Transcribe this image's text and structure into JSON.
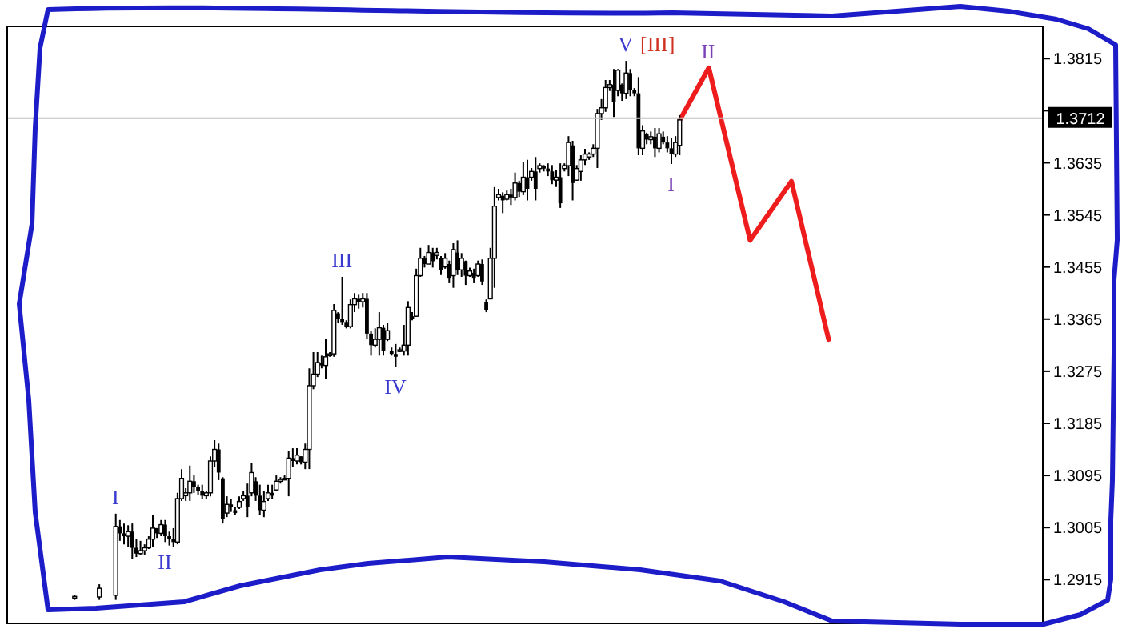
{
  "chart_data": {
    "type": "candlestick",
    "categories": [
      null,
      null,
      null,
      null,
      null,
      null,
      null,
      null,
      null,
      null,
      null,
      null,
      null,
      null,
      null,
      null,
      null,
      null,
      null,
      null,
      null,
      null,
      null,
      null,
      null,
      null,
      null,
      null,
      null,
      null,
      null,
      null,
      null,
      null,
      null,
      null,
      null,
      null,
      null,
      null,
      null,
      null,
      null,
      null,
      null,
      null,
      null,
      null,
      null,
      null,
      null,
      null,
      null,
      null,
      null,
      null,
      null,
      null,
      null,
      null,
      null,
      null,
      null,
      null,
      null,
      null,
      null,
      null,
      null,
      null,
      null,
      null,
      null,
      null,
      null,
      null,
      null,
      null,
      null,
      null,
      null,
      null,
      null,
      null,
      null,
      null,
      null,
      null,
      null,
      null,
      null,
      null,
      null,
      null,
      null,
      null,
      null,
      null,
      null,
      null,
      null,
      null,
      null,
      null,
      null,
      null,
      null,
      null,
      null,
      null,
      null,
      null,
      null,
      null,
      null,
      null,
      null,
      null,
      null,
      null,
      null,
      null,
      null,
      null,
      null,
      null,
      null,
      null,
      null,
      null,
      null,
      null,
      null,
      null,
      null,
      null,
      null,
      null,
      null,
      null,
      null,
      null,
      null,
      null,
      null,
      null,
      null,
      null,
      null,
      null,
      null,
      null,
      null,
      null,
      null,
      null,
      null,
      null,
      null,
      null,
      null,
      null,
      null,
      null,
      null,
      null,
      null,
      null,
      null,
      null,
      null,
      null,
      null,
      null,
      null,
      null,
      null,
      null,
      null,
      null,
      null,
      null,
      null,
      null,
      null,
      null,
      null,
      null,
      null,
      null,
      null,
      null,
      null,
      null,
      null,
      null,
      null,
      null,
      null,
      null,
      null,
      null,
      null,
      null,
      null,
      null,
      null,
      null,
      null,
      null,
      null,
      null,
      null,
      null,
      null,
      null,
      null,
      null,
      null,
      null,
      null,
      null,
      null,
      null,
      null,
      null,
      null,
      null,
      null,
      null,
      null,
      null,
      null,
      null,
      null,
      null,
      null,
      null,
      null,
      null,
      null,
      null,
      null,
      null,
      null,
      null,
      null,
      null,
      null,
      null,
      null,
      null
    ],
    "ohlc": [
      null,
      null,
      null,
      null,
      null,
      null,
      null,
      null,
      null,
      null,
      null,
      null,
      null,
      null,
      null,
      null,
      [
        1.2884,
        1.2888,
        1.288,
        1.2886
      ],
      null,
      null,
      null,
      null,
      null,
      [
        1.2885,
        1.2907,
        1.288,
        1.29
      ],
      null,
      null,
      null,
      [
        1.2888,
        1.3029,
        1.288,
        1.3007
      ],
      [
        1.3007,
        1.3018,
        1.2982,
        1.2995
      ],
      [
        1.2995,
        1.3012,
        1.2976,
        1.299
      ],
      [
        1.299,
        1.3009,
        1.2971,
        1.2998
      ],
      [
        1.2998,
        1.3012,
        1.2951,
        1.297
      ],
      [
        1.297,
        1.2985,
        1.2954,
        1.296
      ],
      [
        1.296,
        1.2982,
        1.2957,
        1.2965
      ],
      [
        1.2965,
        1.2976,
        1.2957,
        1.297
      ],
      [
        1.297,
        1.299,
        1.2968,
        1.2985
      ],
      [
        1.2985,
        1.3027,
        1.2971,
        1.3004
      ],
      [
        1.3004,
        1.3004,
        1.2987,
        1.2995
      ],
      [
        1.2995,
        1.3018,
        1.299,
        1.301
      ],
      [
        1.301,
        1.3018,
        1.298,
        1.299
      ],
      [
        1.299,
        1.2998,
        1.2974,
        1.2985
      ],
      [
        1.2985,
        1.3004,
        1.2971,
        1.298
      ],
      [
        1.298,
        1.3065,
        1.2976,
        1.3055
      ],
      [
        1.3055,
        1.3106,
        1.3051,
        1.309
      ],
      [
        1.306,
        1.3073,
        1.3051,
        1.3065
      ],
      [
        1.3065,
        1.3112,
        1.3051,
        1.3085
      ],
      [
        1.3085,
        1.3095,
        1.3065,
        1.3075
      ],
      [
        1.3075,
        1.3079,
        1.3062,
        1.3068
      ],
      [
        1.3068,
        1.3079,
        1.3054,
        1.306
      ],
      [
        1.306,
        1.3068,
        1.3054,
        1.3065
      ],
      [
        1.3065,
        1.3128,
        1.3059,
        1.312
      ],
      [
        1.312,
        1.3156,
        1.3109,
        1.314
      ],
      [
        1.314,
        1.315,
        1.3087,
        1.31
      ],
      [
        1.309,
        1.3092,
        1.3012,
        1.302
      ],
      [
        1.303,
        1.3059,
        1.3023,
        1.3045
      ],
      [
        1.3045,
        1.3054,
        1.3032,
        1.304
      ],
      [
        1.3035,
        1.304,
        1.3026,
        1.303
      ],
      [
        1.304,
        1.3059,
        1.3037,
        1.305
      ],
      [
        1.3055,
        1.3068,
        1.3051,
        1.306
      ],
      [
        1.306,
        1.3081,
        1.3023,
        1.304
      ],
      [
        1.3065,
        1.3117,
        1.3059,
        1.31
      ],
      [
        1.3085,
        1.3092,
        1.3051,
        1.306
      ],
      [
        1.306,
        1.3079,
        1.3026,
        1.3035
      ],
      [
        1.3035,
        1.3068,
        1.3023,
        1.305
      ],
      [
        1.3055,
        1.3079,
        1.3051,
        1.3065
      ],
      [
        1.3065,
        1.3079,
        1.3054,
        1.306
      ],
      [
        1.307,
        1.3095,
        1.3068,
        1.3085
      ],
      [
        1.3085,
        1.3092,
        1.3081,
        1.3088
      ],
      [
        1.3088,
        1.3095,
        1.3087,
        1.309
      ],
      [
        1.309,
        1.3137,
        1.3059,
        1.3125
      ],
      [
        1.3125,
        1.3142,
        1.3109,
        1.312
      ],
      [
        1.312,
        1.3142,
        1.3114,
        1.313
      ],
      [
        1.3128,
        1.3128,
        1.3114,
        1.3118
      ],
      [
        1.3118,
        1.315,
        1.3106,
        1.314
      ],
      [
        1.314,
        1.328,
        1.3106,
        1.325
      ],
      [
        1.325,
        1.3308,
        1.3244,
        1.327
      ],
      [
        1.327,
        1.3308,
        1.3265,
        1.329
      ],
      [
        1.329,
        1.3302,
        1.328,
        1.3285
      ],
      [
        1.3285,
        1.333,
        1.3261,
        1.33
      ],
      [
        1.3302,
        1.3308,
        1.33,
        1.3305
      ],
      [
        1.3305,
        1.3391,
        1.33,
        1.338
      ],
      [
        1.3375,
        1.3377,
        1.3358,
        1.3365
      ],
      [
        1.3365,
        1.3438,
        1.3355,
        1.336
      ],
      [
        1.336,
        1.3363,
        1.3349,
        1.3352
      ],
      [
        1.3352,
        1.3399,
        1.3349,
        1.339
      ],
      [
        1.339,
        1.341,
        1.3377,
        1.34
      ],
      [
        1.34,
        1.3407,
        1.3383,
        1.3395
      ],
      [
        1.3395,
        1.341,
        1.3385,
        1.34
      ],
      [
        1.34,
        1.341,
        1.333,
        1.334
      ],
      [
        1.334,
        1.3344,
        1.3302,
        1.332
      ],
      [
        1.332,
        1.3349,
        1.3316,
        1.333
      ],
      [
        1.333,
        1.3377,
        1.3302,
        1.335
      ],
      [
        1.335,
        1.3355,
        1.3302,
        1.331
      ],
      [
        1.333,
        1.3358,
        1.3327,
        1.3345
      ],
      [
        1.331,
        1.3316,
        1.3302,
        1.3305
      ],
      [
        1.3305,
        1.3322,
        1.3283,
        1.33
      ],
      [
        1.331,
        1.3316,
        1.3308,
        1.3312
      ],
      [
        1.331,
        1.3355,
        1.3302,
        1.332
      ],
      [
        1.332,
        1.3396,
        1.3302,
        1.3385
      ],
      [
        1.337,
        1.3377,
        1.3363,
        1.3366
      ],
      [
        1.337,
        1.3452,
        1.3369,
        1.344
      ],
      [
        1.344,
        1.3488,
        1.3438,
        1.347
      ],
      [
        1.347,
        1.3474,
        1.3454,
        1.346
      ],
      [
        1.346,
        1.3493,
        1.346,
        1.348
      ],
      [
        1.348,
        1.3488,
        1.3454,
        1.3465
      ],
      [
        1.3475,
        1.3488,
        1.3468,
        1.348
      ],
      [
        1.347,
        1.3474,
        1.3441,
        1.345
      ],
      [
        1.3455,
        1.3479,
        1.3452,
        1.347
      ],
      [
        1.346,
        1.3466,
        1.3427,
        1.3435
      ],
      [
        1.344,
        1.3496,
        1.3419,
        1.3485
      ],
      [
        1.348,
        1.3501,
        1.3441,
        1.345
      ],
      [
        1.345,
        1.3479,
        1.3438,
        1.347
      ],
      [
        1.3465,
        1.3466,
        1.3424,
        1.344
      ],
      [
        1.344,
        1.3454,
        1.3438,
        1.3448
      ],
      [
        1.3445,
        1.3452,
        1.3427,
        1.3435
      ],
      [
        1.344,
        1.3466,
        1.3438,
        1.346
      ],
      [
        1.346,
        1.3468,
        1.3424,
        1.343
      ],
      [
        1.3395,
        1.3399,
        1.3377,
        1.338
      ],
      [
        1.34,
        1.3488,
        1.3399,
        1.347
      ],
      [
        1.347,
        1.3593,
        1.3419,
        1.356
      ],
      [
        1.3575,
        1.359,
        1.357,
        1.358
      ],
      [
        1.3578,
        1.3584,
        1.3548,
        1.357
      ],
      [
        1.3572,
        1.3587,
        1.357,
        1.358
      ],
      [
        1.358,
        1.359,
        1.3562,
        1.3575
      ],
      [
        1.3575,
        1.3618,
        1.357,
        1.36
      ],
      [
        1.36,
        1.3604,
        1.3576,
        1.3585
      ],
      [
        1.3585,
        1.3637,
        1.3579,
        1.361
      ],
      [
        1.361,
        1.364,
        1.357,
        1.359
      ],
      [
        1.361,
        1.3626,
        1.3604,
        1.362
      ],
      [
        1.362,
        1.3645,
        1.357,
        1.359
      ],
      [
        1.3625,
        1.3634,
        1.3618,
        1.363
      ],
      [
        1.363,
        1.3631,
        1.362,
        1.3625
      ],
      [
        1.3625,
        1.3634,
        1.3612,
        1.362
      ],
      [
        1.362,
        1.3631,
        1.3598,
        1.3605
      ],
      [
        1.3605,
        1.3623,
        1.3593,
        1.361
      ],
      [
        1.361,
        1.3634,
        1.3557,
        1.3565
      ],
      [
        1.3625,
        1.3634,
        1.362,
        1.363
      ],
      [
        1.363,
        1.3681,
        1.3612,
        1.367
      ],
      [
        1.3665,
        1.3673,
        1.357,
        1.36
      ],
      [
        1.3605,
        1.3631,
        1.3604,
        1.3625
      ],
      [
        1.362,
        1.3648,
        1.3604,
        1.364
      ],
      [
        1.364,
        1.3659,
        1.3631,
        1.365
      ],
      [
        1.3645,
        1.3653,
        1.364,
        1.365
      ],
      [
        1.365,
        1.3667,
        1.3645,
        1.366
      ],
      [
        1.366,
        1.3728,
        1.3626,
        1.372
      ],
      [
        1.372,
        1.3745,
        1.3709,
        1.373
      ],
      [
        1.373,
        1.3778,
        1.3723,
        1.3765
      ],
      [
        1.3765,
        1.3778,
        1.3759,
        1.377
      ],
      [
        1.377,
        1.3797,
        1.3714,
        1.374
      ],
      [
        1.376,
        1.3797,
        1.375,
        1.3795
      ],
      [
        1.377,
        1.3772,
        1.3742,
        1.3755
      ],
      [
        1.3755,
        1.3811,
        1.3745,
        1.379
      ],
      [
        1.379,
        1.3797,
        1.375,
        1.376
      ],
      [
        1.376,
        1.3764,
        1.375,
        1.3755
      ],
      [
        1.3755,
        1.3783,
        1.3648,
        1.366
      ],
      [
        1.366,
        1.37,
        1.3648,
        1.369
      ],
      [
        1.3685,
        1.3687,
        1.3667,
        1.3675
      ],
      [
        1.3675,
        1.3689,
        1.3667,
        1.368
      ],
      [
        1.368,
        1.3695,
        1.3645,
        1.366
      ],
      [
        1.366,
        1.3695,
        1.3653,
        1.3685
      ],
      [
        1.368,
        1.3689,
        1.3667,
        1.367
      ],
      [
        1.367,
        1.3681,
        1.3653,
        1.366
      ],
      [
        1.366,
        1.3678,
        1.3633,
        1.365
      ],
      [
        1.365,
        1.3681,
        1.3645,
        1.367
      ],
      [
        1.3665,
        1.3717,
        1.3648,
        1.3709
      ],
      null,
      null,
      null,
      null,
      null,
      null,
      null,
      null,
      null,
      null,
      null,
      null,
      null,
      null,
      null,
      null,
      null,
      null,
      null,
      null,
      null,
      null,
      null,
      null,
      null,
      null,
      null,
      null,
      null,
      null,
      null,
      null,
      null,
      null,
      null,
      null,
      null,
      null,
      null,
      null,
      null,
      null,
      null,
      null,
      null,
      null,
      null,
      null,
      null,
      null,
      null,
      null,
      null,
      null,
      null,
      null,
      null,
      null,
      null,
      null,
      null,
      null,
      null,
      null,
      null,
      null,
      null,
      null,
      null,
      null,
      null,
      null,
      null,
      null,
      null,
      null,
      null,
      null,
      null,
      null,
      null,
      null,
      null,
      null,
      null,
      null,
      null,
      null
    ],
    "series": [
      {
        "type": "line",
        "color": "#ee1c1c",
        "values": [
          null,
          null,
          null,
          null,
          null,
          null,
          null,
          null,
          null,
          null,
          null,
          null,
          null,
          null,
          null,
          null,
          null,
          null,
          null,
          null,
          null,
          null,
          null,
          null,
          null,
          null,
          null,
          null,
          null,
          null,
          null,
          null,
          null,
          null,
          null,
          null,
          null,
          null,
          null,
          null,
          null,
          null,
          null,
          null,
          null,
          null,
          null,
          null,
          null,
          null,
          null,
          null,
          null,
          null,
          null,
          null,
          null,
          null,
          null,
          null,
          null,
          null,
          null,
          null,
          null,
          null,
          null,
          null,
          null,
          null,
          null,
          null,
          null,
          null,
          null,
          null,
          null,
          null,
          null,
          null,
          null,
          null,
          null,
          null,
          null,
          null,
          null,
          null,
          null,
          null,
          null,
          null,
          null,
          null,
          null,
          null,
          null,
          null,
          null,
          null,
          null,
          null,
          null,
          null,
          null,
          null,
          null,
          null,
          null,
          null,
          null,
          null,
          null,
          null,
          null,
          null,
          null,
          null,
          null,
          null,
          null,
          null,
          null,
          null,
          null,
          null,
          null,
          null,
          null,
          null,
          null,
          null,
          null,
          null,
          null,
          null,
          null,
          null,
          null,
          null,
          null,
          null,
          null,
          null,
          null,
          null,
          null,
          null,
          null,
          null,
          null,
          null,
          null,
          null,
          null,
          null,
          null,
          null,
          null,
          null,
          null,
          null,
          null,
          1.3709,
          null,
          null,
          null,
          null,
          null,
          null,
          1.3799,
          null,
          null,
          null,
          null,
          null,
          null,
          null,
          null,
          null,
          1.3501,
          null,
          null,
          null,
          null,
          null,
          null,
          null,
          null,
          null,
          1.3603,
          null,
          null,
          null,
          null,
          null,
          null,
          null,
          null,
          1.333,
          null,
          null,
          null,
          null,
          null,
          null,
          null,
          null,
          null,
          null,
          null,
          null,
          null,
          null,
          null,
          null,
          null,
          null,
          null,
          null,
          null,
          null,
          null,
          null,
          null,
          null,
          null,
          null,
          null,
          null,
          null,
          null,
          null,
          null,
          null,
          null,
          null,
          null,
          null,
          null,
          null,
          null,
          null,
          null,
          null,
          null,
          null,
          null,
          null,
          null,
          null,
          null
        ]
      }
    ],
    "ylim": [
      1.2838,
      1.3872
    ],
    "yticks": [
      1.2915,
      1.3005,
      1.3095,
      1.3185,
      1.3275,
      1.3365,
      1.3455,
      1.3545,
      1.3635,
      {
        "value": 1.3725,
        "label": null
      },
      1.3815
    ],
    "ref_lines": [
      {
        "axis": "y",
        "value": 1.3712,
        "label": "1.3712",
        "color": "#c0c0c0"
      }
    ],
    "annotations": [
      {
        "text": "I",
        "y": 1.3029
      },
      {
        "text": "II",
        "y": 1.298
      },
      {
        "text": "III",
        "y": 1.3438
      },
      {
        "text": "IV",
        "y": 1.3283
      },
      {
        "text": "V",
        "y": 1.3811
      },
      "[III]",
      {
        "text": "I",
        "y": 1.3633
      },
      {
        "text": "II",
        "y": 1.3799
      }
    ],
    "tick_labels": "y"
  }
}
